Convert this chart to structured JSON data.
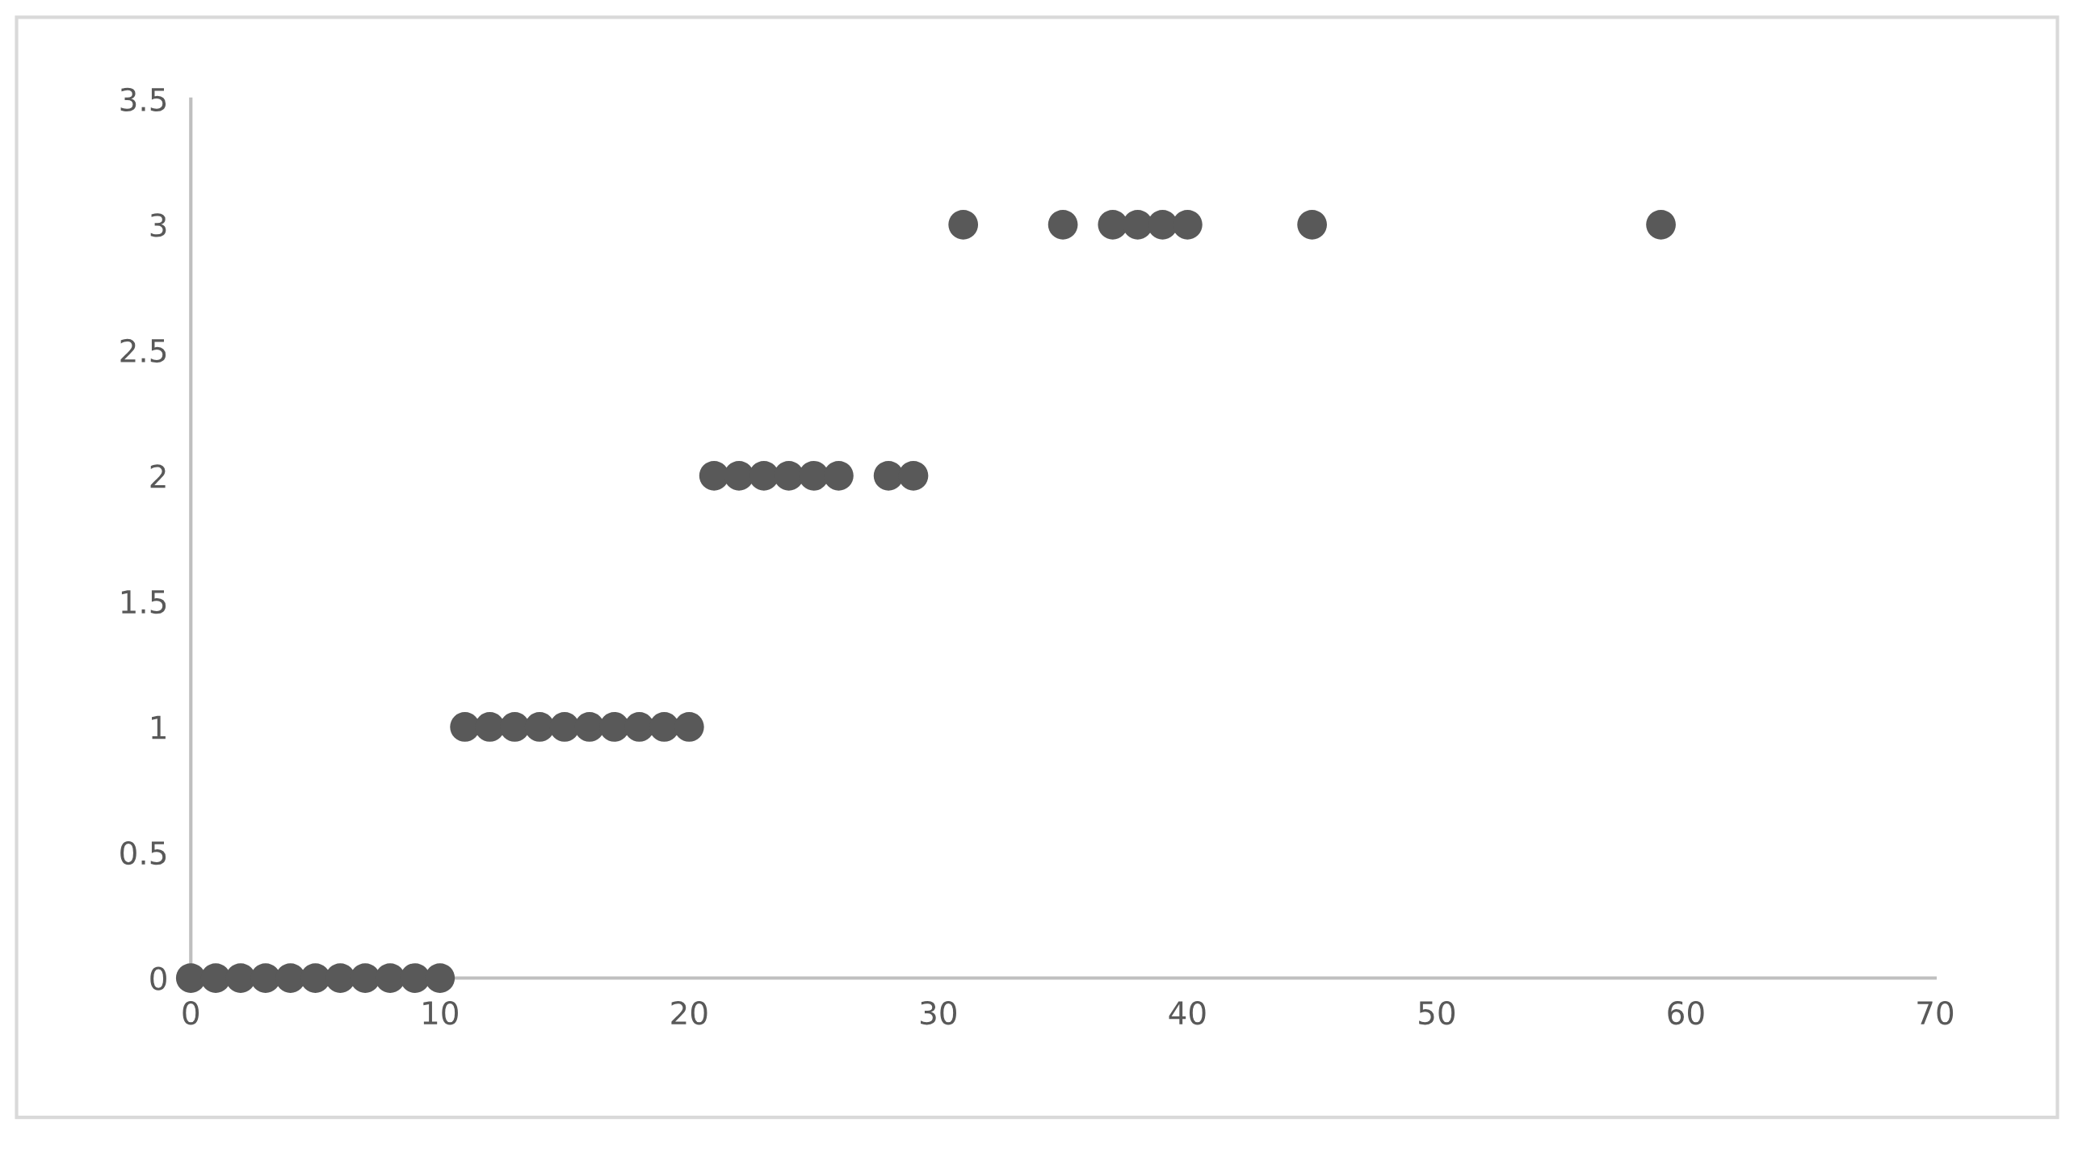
{
  "chart_data": {
    "type": "scatter",
    "x": [
      0,
      1,
      2,
      3,
      4,
      5,
      6,
      7,
      8,
      9,
      10,
      11,
      12,
      13,
      14,
      15,
      16,
      17,
      18,
      19,
      20,
      21,
      22,
      23,
      24,
      25,
      26,
      28,
      29,
      31,
      35,
      37,
      38,
      39,
      40,
      45,
      59
    ],
    "values": [
      0,
      0,
      0,
      0,
      0,
      0,
      0,
      0,
      0,
      0,
      0,
      1,
      1,
      1,
      1,
      1,
      1,
      1,
      1,
      1,
      1,
      2,
      2,
      2,
      2,
      2,
      2,
      2,
      2,
      3,
      3,
      3,
      3,
      3,
      3,
      3,
      3
    ],
    "color": "#595959",
    "marker": "circle",
    "xlim": [
      0,
      70
    ],
    "xticks": [
      0,
      10,
      20,
      30,
      40,
      50,
      60,
      70
    ],
    "ylim": [
      0,
      3.5
    ],
    "yticks": [
      0,
      0.5,
      1,
      1.5,
      2,
      2.5,
      3,
      3.5
    ],
    "grid": false,
    "legend": false
  }
}
